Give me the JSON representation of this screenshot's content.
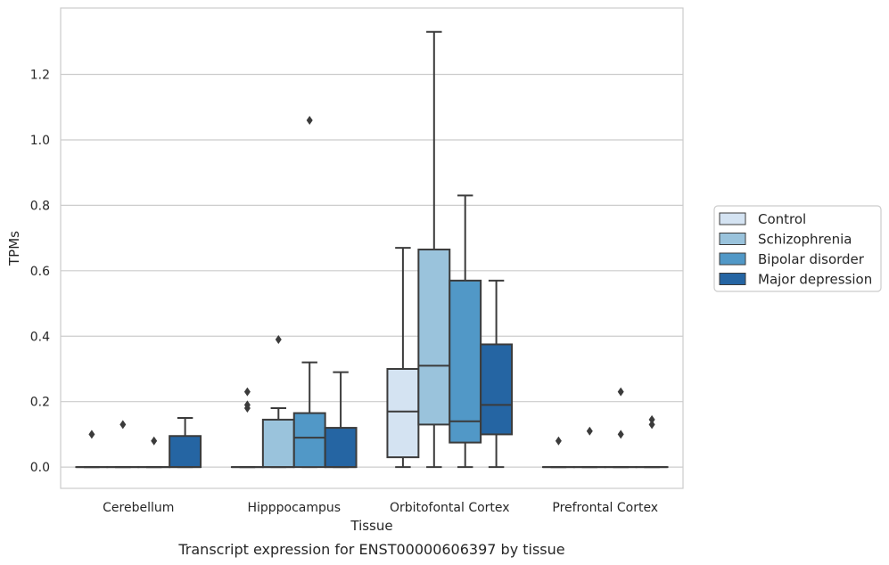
{
  "chart_data": {
    "type": "box",
    "xlabel": "Tissue",
    "ylabel": "TPMs",
    "caption": "Transcript expression for ENST00000606397 by tissue",
    "ylim": [
      -0.065,
      1.403
    ],
    "yticks": [
      "0.0",
      "0.2",
      "0.4",
      "0.6",
      "0.8",
      "1.0",
      "1.2"
    ],
    "ytick_values": [
      0,
      0.2,
      0.4,
      0.6,
      0.8,
      1.0,
      1.2
    ],
    "grid": "horizontal",
    "legend_position": "right",
    "categories": [
      "Cerebellum",
      "Hipppocampus",
      "Orbitofontal Cortex",
      "Prefrontal Cortex"
    ],
    "series": [
      {
        "name": "Control",
        "color": "#d4e3f2",
        "boxes": [
          {
            "q1": 0,
            "median": 0,
            "q3": 0,
            "whisker_low": 0,
            "whisker_high": 0,
            "outliers": [
              0.1
            ]
          },
          {
            "q1": 0,
            "median": 0,
            "q3": 0,
            "whisker_low": 0,
            "whisker_high": 0,
            "outliers": [
              0.23,
              0.19,
              0.18
            ]
          },
          {
            "q1": 0.03,
            "median": 0.17,
            "q3": 0.3,
            "whisker_low": 0,
            "whisker_high": 0.67,
            "outliers": []
          },
          {
            "q1": 0,
            "median": 0,
            "q3": 0,
            "whisker_low": 0,
            "whisker_high": 0,
            "outliers": [
              0.08
            ]
          }
        ]
      },
      {
        "name": "Schizophrenia",
        "color": "#9ac3dc",
        "boxes": [
          {
            "q1": 0,
            "median": 0,
            "q3": 0,
            "whisker_low": 0,
            "whisker_high": 0,
            "outliers": [
              0.13
            ]
          },
          {
            "q1": 0,
            "median": 0,
            "q3": 0.145,
            "whisker_low": 0,
            "whisker_high": 0.18,
            "outliers": [
              0.39
            ]
          },
          {
            "q1": 0.13,
            "median": 0.31,
            "q3": 0.665,
            "whisker_low": 0,
            "whisker_high": 1.33,
            "outliers": []
          },
          {
            "q1": 0,
            "median": 0,
            "q3": 0,
            "whisker_low": 0,
            "whisker_high": 0,
            "outliers": [
              0.11
            ]
          }
        ]
      },
      {
        "name": "Bipolar disorder",
        "color": "#5198c7",
        "boxes": [
          {
            "q1": 0,
            "median": 0,
            "q3": 0,
            "whisker_low": 0,
            "whisker_high": 0,
            "outliers": [
              0.08
            ]
          },
          {
            "q1": 0,
            "median": 0.09,
            "q3": 0.165,
            "whisker_low": 0,
            "whisker_high": 0.32,
            "outliers": [
              1.06
            ]
          },
          {
            "q1": 0.075,
            "median": 0.14,
            "q3": 0.57,
            "whisker_low": 0,
            "whisker_high": 0.83,
            "outliers": []
          },
          {
            "q1": 0,
            "median": 0,
            "q3": 0,
            "whisker_low": 0,
            "whisker_high": 0,
            "outliers": [
              0.23,
              0.1
            ]
          }
        ]
      },
      {
        "name": "Major depression",
        "color": "#2565a3",
        "boxes": [
          {
            "q1": 0,
            "median": 0,
            "q3": 0.095,
            "whisker_low": 0,
            "whisker_high": 0.15,
            "outliers": []
          },
          {
            "q1": 0,
            "median": 0,
            "q3": 0.12,
            "whisker_low": 0,
            "whisker_high": 0.29,
            "outliers": []
          },
          {
            "q1": 0.1,
            "median": 0.19,
            "q3": 0.375,
            "whisker_low": 0,
            "whisker_high": 0.57,
            "outliers": []
          },
          {
            "q1": 0,
            "median": 0,
            "q3": 0,
            "whisker_low": 0,
            "whisker_high": 0,
            "outliers": [
              0.145,
              0.13
            ]
          }
        ]
      }
    ]
  }
}
